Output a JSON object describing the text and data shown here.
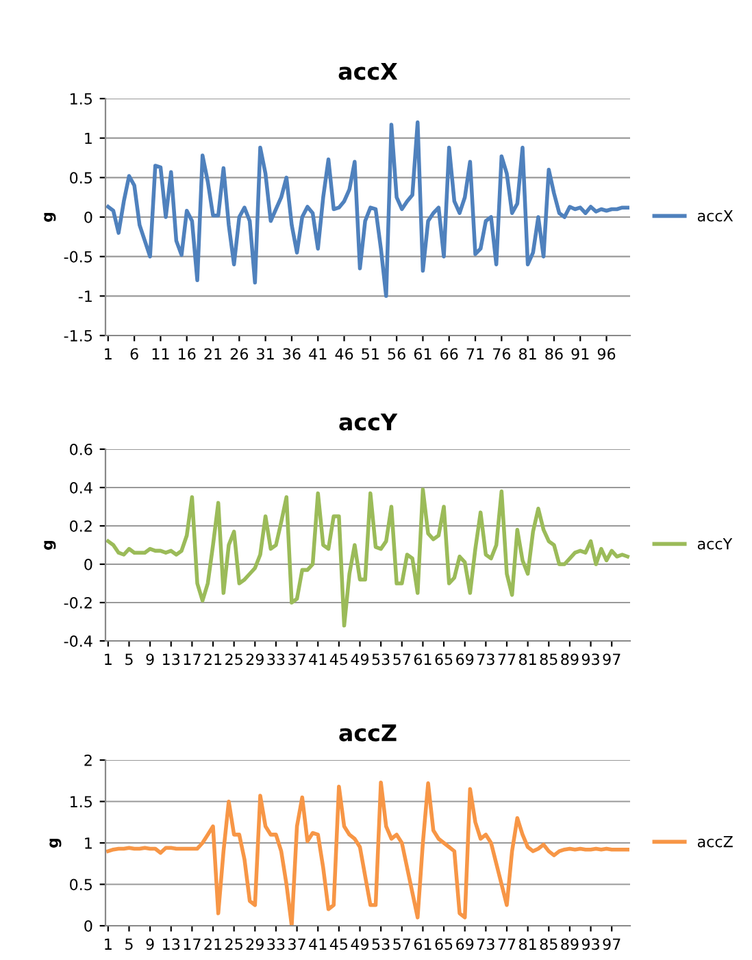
{
  "chart_data": [
    {
      "type": "line",
      "title": "accX",
      "ylabel": "g",
      "legend": "right",
      "grid": "y",
      "marker": "none",
      "line_style": "solid",
      "categories": [
        "1",
        null,
        null,
        null,
        null,
        "6",
        null,
        null,
        null,
        null,
        "11",
        null,
        null,
        null,
        null,
        "16",
        null,
        null,
        null,
        null,
        "21",
        null,
        null,
        null,
        null,
        "26",
        null,
        null,
        null,
        null,
        "31",
        null,
        null,
        null,
        null,
        "36",
        null,
        null,
        null,
        null,
        "41",
        null,
        null,
        null,
        null,
        "46",
        null,
        null,
        null,
        null,
        "51",
        null,
        null,
        null,
        null,
        "56",
        null,
        null,
        null,
        null,
        "61",
        null,
        null,
        null,
        null,
        "66",
        null,
        null,
        null,
        null,
        "71",
        null,
        null,
        null,
        null,
        "76",
        null,
        null,
        null,
        null,
        "81",
        null,
        null,
        null,
        null,
        "86",
        null,
        null,
        null,
        null,
        "91",
        null,
        null,
        null,
        null,
        "96",
        null,
        null,
        null,
        null
      ],
      "ylim": [
        -1.5,
        1.5
      ],
      "yticks": [
        -1.5,
        -1,
        -0.5,
        0,
        0.5,
        1,
        1.5
      ],
      "series": [
        {
          "name": "accX",
          "color": "#4f81bd",
          "values": [
            0.13,
            0.08,
            -0.2,
            0.2,
            0.52,
            0.4,
            -0.1,
            -0.3,
            -0.5,
            0.65,
            0.63,
            0,
            0.57,
            -0.3,
            -0.48,
            0.08,
            -0.05,
            -0.8,
            0.78,
            0.45,
            0.02,
            0.02,
            0.62,
            -0.1,
            -0.6,
            0,
            0.12,
            -0.05,
            -0.83,
            0.88,
            0.55,
            -0.05,
            0.1,
            0.25,
            0.5,
            -0.1,
            -0.45,
            0,
            0.13,
            0.05,
            -0.4,
            0.25,
            0.73,
            0.1,
            0.12,
            0.2,
            0.35,
            0.7,
            -0.65,
            -0.05,
            0.12,
            0.1,
            -0.4,
            -1.0,
            1.17,
            0.25,
            0.1,
            0.2,
            0.28,
            1.2,
            -0.68,
            -0.05,
            0.05,
            0.12,
            -0.5,
            0.88,
            0.2,
            0.05,
            0.25,
            0.7,
            -0.47,
            -0.4,
            -0.05,
            0,
            -0.6,
            0.77,
            0.55,
            0.05,
            0.17,
            0.88,
            -0.6,
            -0.45,
            0,
            -0.5,
            0.6,
            0.3,
            0.05,
            0,
            0.13,
            0.1,
            0.12,
            0.05,
            0.13,
            0.07,
            0.1,
            0.08,
            0.1,
            0.1,
            0.12,
            0.12
          ]
        }
      ]
    },
    {
      "type": "line",
      "title": "accY",
      "ylabel": "g",
      "legend": "right",
      "grid": "y",
      "marker": "none",
      "line_style": "solid",
      "categories": [
        "1",
        null,
        null,
        null,
        "5",
        null,
        null,
        null,
        "9",
        null,
        null,
        null,
        "13",
        null,
        null,
        null,
        "17",
        null,
        null,
        null,
        "21",
        null,
        null,
        null,
        "25",
        null,
        null,
        null,
        "29",
        null,
        null,
        null,
        "33",
        null,
        null,
        null,
        "37",
        null,
        null,
        null,
        "41",
        null,
        null,
        null,
        "45",
        null,
        null,
        null,
        "49",
        null,
        null,
        null,
        "53",
        null,
        null,
        null,
        "57",
        null,
        null,
        null,
        "61",
        null,
        null,
        null,
        "65",
        null,
        null,
        null,
        "69",
        null,
        null,
        null,
        "73",
        null,
        null,
        null,
        "77",
        null,
        null,
        null,
        "81",
        null,
        null,
        null,
        "85",
        null,
        null,
        null,
        "89",
        null,
        null,
        null,
        "93",
        null,
        null,
        null,
        "97",
        null,
        null,
        null
      ],
      "ylim": [
        -0.4,
        0.6
      ],
      "yticks": [
        -0.4,
        -0.2,
        0,
        0.2,
        0.4,
        0.6
      ],
      "series": [
        {
          "name": "accY",
          "color": "#9bbb59",
          "values": [
            0.12,
            0.1,
            0.06,
            0.05,
            0.08,
            0.06,
            0.06,
            0.06,
            0.08,
            0.07,
            0.07,
            0.06,
            0.07,
            0.05,
            0.07,
            0.15,
            0.35,
            -0.1,
            -0.19,
            -0.1,
            0.1,
            0.32,
            -0.15,
            0.1,
            0.17,
            -0.1,
            -0.08,
            -0.05,
            -0.02,
            0.05,
            0.25,
            0.08,
            0.1,
            0.22,
            0.35,
            -0.2,
            -0.18,
            -0.03,
            -0.03,
            0.0,
            0.37,
            0.1,
            0.08,
            0.25,
            0.25,
            -0.32,
            -0.05,
            0.1,
            -0.08,
            -0.08,
            0.37,
            0.09,
            0.08,
            0.12,
            0.3,
            -0.1,
            -0.1,
            0.05,
            0.03,
            -0.15,
            0.39,
            0.16,
            0.13,
            0.15,
            0.3,
            -0.1,
            -0.07,
            0.04,
            0.01,
            -0.15,
            0.08,
            0.27,
            0.05,
            0.03,
            0.1,
            0.38,
            -0.05,
            -0.16,
            0.18,
            0.02,
            -0.05,
            0.17,
            0.29,
            0.18,
            0.12,
            0.1,
            0.0,
            0.0,
            0.03,
            0.06,
            0.07,
            0.06,
            0.12,
            0.0,
            0.08,
            0.02,
            0.07,
            0.04,
            0.05,
            0.04
          ]
        }
      ]
    },
    {
      "type": "line",
      "title": "accZ",
      "ylabel": "g",
      "legend": "right",
      "grid": "y",
      "marker": "none",
      "line_style": "solid",
      "categories": [
        "1",
        null,
        null,
        null,
        "5",
        null,
        null,
        null,
        "9",
        null,
        null,
        null,
        "13",
        null,
        null,
        null,
        "17",
        null,
        null,
        null,
        "21",
        null,
        null,
        null,
        "25",
        null,
        null,
        null,
        "29",
        null,
        null,
        null,
        "33",
        null,
        null,
        null,
        "37",
        null,
        null,
        null,
        "41",
        null,
        null,
        null,
        "45",
        null,
        null,
        null,
        "49",
        null,
        null,
        null,
        "53",
        null,
        null,
        null,
        "57",
        null,
        null,
        null,
        "61",
        null,
        null,
        null,
        "65",
        null,
        null,
        null,
        "69",
        null,
        null,
        null,
        "73",
        null,
        null,
        null,
        "77",
        null,
        null,
        null,
        "81",
        null,
        null,
        null,
        "85",
        null,
        null,
        null,
        "89",
        null,
        null,
        null,
        "93",
        null,
        null,
        null,
        "97",
        null,
        null,
        null
      ],
      "ylim": [
        0,
        2
      ],
      "yticks": [
        0,
        0.5,
        1,
        1.5,
        2
      ],
      "series": [
        {
          "name": "accZ",
          "color": "#f79646",
          "values": [
            0.9,
            0.92,
            0.93,
            0.93,
            0.94,
            0.93,
            0.93,
            0.94,
            0.93,
            0.93,
            0.88,
            0.94,
            0.94,
            0.93,
            0.93,
            0.93,
            0.93,
            0.93,
            1.0,
            1.1,
            1.2,
            0.15,
            0.9,
            1.5,
            1.1,
            1.1,
            0.8,
            0.3,
            0.25,
            1.57,
            1.2,
            1.1,
            1.1,
            0.9,
            0.5,
            0.0,
            1.2,
            1.55,
            1.02,
            1.12,
            1.1,
            0.7,
            0.2,
            0.25,
            1.68,
            1.2,
            1.1,
            1.05,
            0.95,
            0.6,
            0.25,
            0.25,
            1.73,
            1.2,
            1.05,
            1.1,
            1.0,
            0.7,
            0.4,
            0.1,
            1.0,
            1.72,
            1.15,
            1.05,
            1.0,
            0.95,
            0.9,
            0.15,
            0.1,
            1.65,
            1.25,
            1.05,
            1.1,
            1.0,
            0.75,
            0.5,
            0.25,
            0.9,
            1.3,
            1.1,
            0.95,
            0.9,
            0.93,
            0.98,
            0.9,
            0.85,
            0.9,
            0.92,
            0.93,
            0.92,
            0.93,
            0.92,
            0.92,
            0.93,
            0.92,
            0.93,
            0.92,
            0.92,
            0.92,
            0.92
          ]
        }
      ]
    }
  ]
}
